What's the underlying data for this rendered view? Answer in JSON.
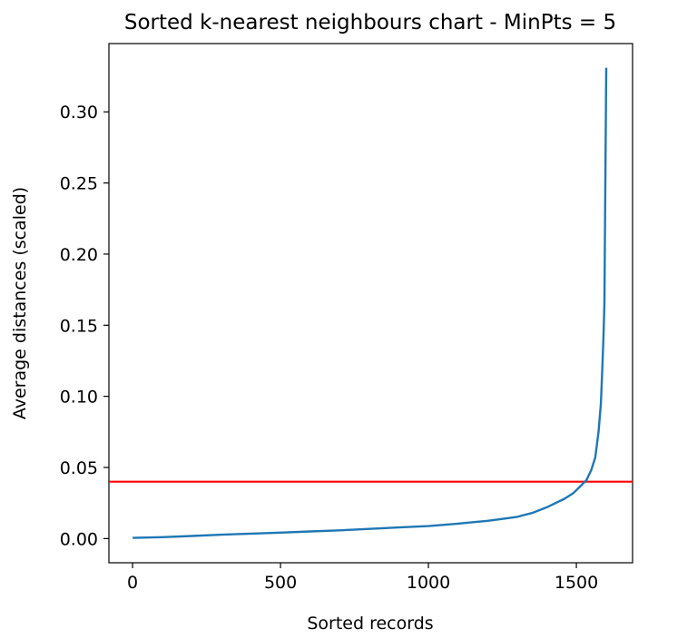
{
  "chart_data": {
    "type": "line",
    "title": "Sorted k-nearest neighbours chart - MinPts = 5",
    "xlabel": "Sorted records",
    "ylabel": "Average distances (scaled)",
    "xlim": [
      -80,
      1690
    ],
    "ylim": [
      -0.017,
      0.348
    ],
    "xticks": [
      0,
      500,
      1000,
      1500
    ],
    "xtick_labels": [
      "0",
      "500",
      "1000",
      "1500"
    ],
    "yticks": [
      0.0,
      0.05,
      0.1,
      0.15,
      0.2,
      0.25,
      0.3
    ],
    "ytick_labels": [
      "0.00",
      "0.05",
      "0.10",
      "0.15",
      "0.20",
      "0.25",
      "0.30"
    ],
    "grid": false,
    "series": [
      {
        "color": "#1f77b4",
        "x": [
          0,
          100,
          200,
          300,
          400,
          500,
          600,
          700,
          800,
          900,
          1000,
          1100,
          1200,
          1250,
          1300,
          1350,
          1400,
          1430,
          1460,
          1490,
          1510,
          1534,
          1550,
          1564,
          1575,
          1583,
          1588,
          1592,
          1595,
          1598,
          1601
        ],
        "y": [
          0.0005,
          0.001,
          0.0018,
          0.0027,
          0.0035,
          0.0042,
          0.005,
          0.0058,
          0.0068,
          0.0078,
          0.0088,
          0.0105,
          0.0125,
          0.0138,
          0.0153,
          0.018,
          0.022,
          0.025,
          0.028,
          0.032,
          0.036,
          0.041,
          0.048,
          0.057,
          0.075,
          0.095,
          0.12,
          0.145,
          0.166,
          0.25,
          0.331
        ]
      }
    ],
    "hline": {
      "y": 0.04,
      "color": "#ff0000"
    }
  }
}
